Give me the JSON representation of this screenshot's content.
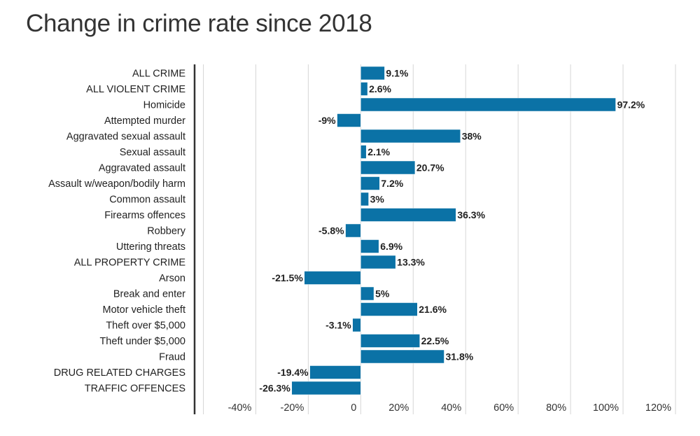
{
  "chart_data": {
    "type": "bar",
    "orientation": "horizontal",
    "title": "Change in crime rate since 2018",
    "xlabel": "",
    "ylabel": "",
    "xlim": [
      -60,
      120
    ],
    "ticks": [
      -40,
      -20,
      0,
      20,
      40,
      60,
      80,
      100,
      120
    ],
    "tick_labels": [
      "-40%",
      "-20%",
      "0",
      "20%",
      "40%",
      "60%",
      "80%",
      "100%",
      "120%"
    ],
    "grid": true,
    "bar_color": "#0b72a6",
    "categories": [
      "ALL CRIME",
      "ALL VIOLENT CRIME",
      "Homicide",
      "Attempted murder",
      "Aggravated sexual assault",
      "Sexual assault",
      "Aggravated assault",
      "Assault w/weapon/bodily harm",
      "Common assault",
      "Firearms offences",
      "Robbery",
      "Uttering threats",
      "ALL PROPERTY CRIME",
      "Arson",
      "Break and enter",
      "Motor vehicle theft",
      "Theft over $5,000",
      "Theft under $5,000",
      "Fraud",
      "DRUG RELATED CHARGES",
      "TRAFFIC OFFENCES"
    ],
    "values": [
      9.1,
      2.6,
      97.2,
      -9,
      38,
      2.1,
      20.7,
      7.2,
      3,
      36.3,
      -5.8,
      6.9,
      13.3,
      -21.5,
      5,
      21.6,
      -3.1,
      22.5,
      31.8,
      -19.4,
      -26.3
    ],
    "value_labels": [
      "9.1%",
      "2.6%",
      "97.2%",
      "-9%",
      "38%",
      "2.1%",
      "20.7%",
      "7.2%",
      "3%",
      "36.3%",
      "-5.8%",
      "6.9%",
      "13.3%",
      "-21.5%",
      "5%",
      "21.6%",
      "-3.1%",
      "22.5%",
      "31.8%",
      "-19.4%",
      "-26.3%"
    ]
  }
}
